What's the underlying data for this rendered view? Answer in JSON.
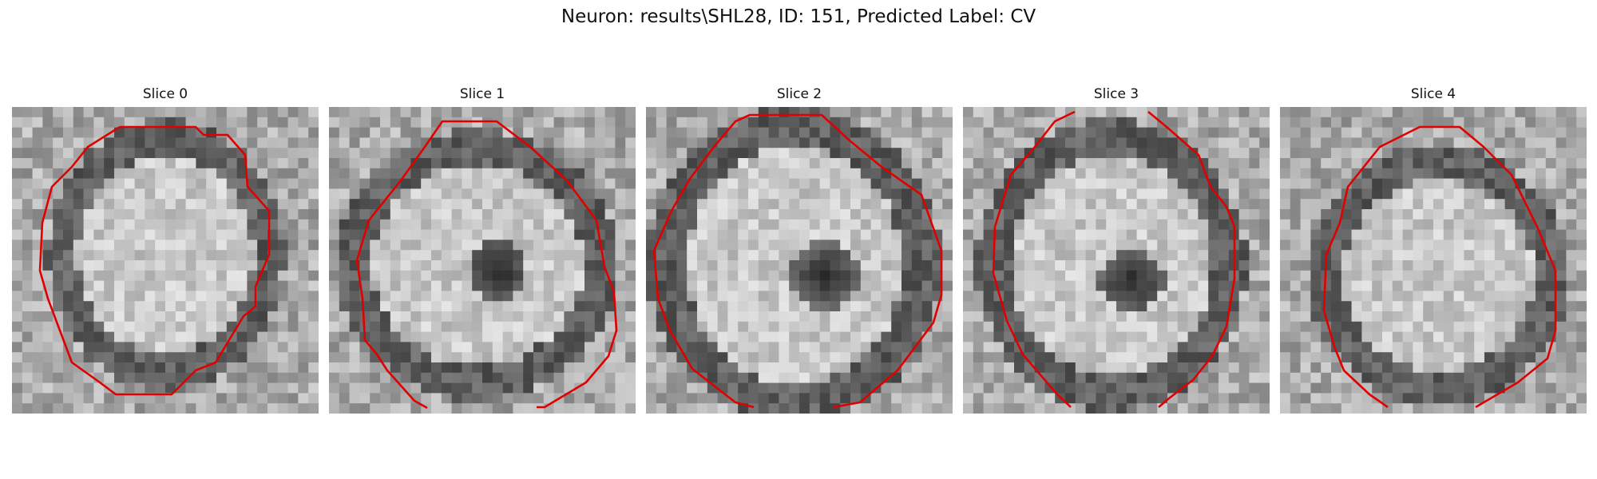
{
  "figure": {
    "title": "Neuron: results\\SHL28, ID: 151, Predicted Label: CV"
  },
  "panels": [
    {
      "title": "Slice 0"
    },
    {
      "title": "Slice 1"
    },
    {
      "title": "Slice 2"
    },
    {
      "title": "Slice 3"
    },
    {
      "title": "Slice 4"
    }
  ],
  "colors": {
    "contour": "#e00000",
    "background": "#ffffff"
  }
}
